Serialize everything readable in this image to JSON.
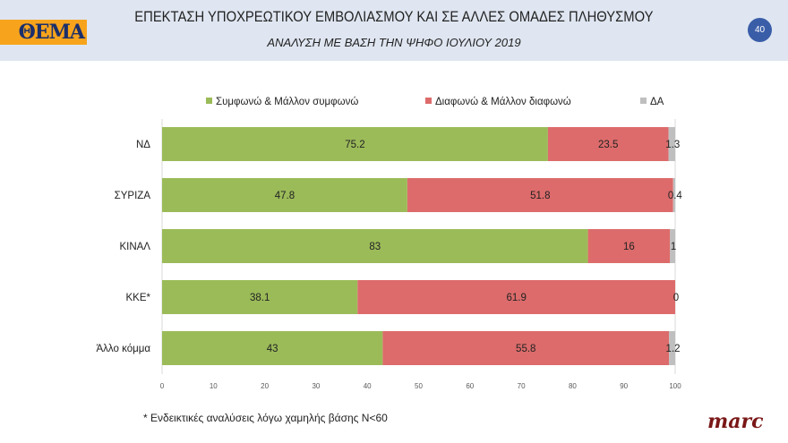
{
  "header": {
    "logo": "ΘΕΜΑ",
    "title": "ΕΠΕΚΤΑΣΗ ΥΠΟΧΡΕΩΤΙΚΟΥ ΕΜΒΟΛΙΑΣΜΟΥ ΚΑΙ ΣΕ ΑΛΛΕΣ ΟΜΑΔΕΣ ΠΛΗΘΥΣΜΟΥ",
    "subtitle": "ΑΝΑΛΥΣΗ ΜΕ ΒΑΣΗ ΤΗΝ ΨΗΦΟ ΙΟΥΛΙΟΥ 2019",
    "page_number": "40"
  },
  "footnote": "* Ενδεικτικές αναλύσεις λόγω χαμηλής βάσης Ν<60",
  "brand": "marc",
  "chart_data": {
    "type": "bar",
    "orientation": "horizontal",
    "stacked": true,
    "categories": [
      "ΝΔ",
      "ΣΥΡΙΖΑ",
      "ΚΙΝΑΛ",
      "ΚΚΕ*",
      "Άλλο κόμμα"
    ],
    "series": [
      {
        "name": "Συμφωνώ & Μάλλον συμφωνώ",
        "color": "#9bbb59",
        "values": [
          75.2,
          47.8,
          83,
          38.1,
          43
        ]
      },
      {
        "name": "Διαφωνώ & Μάλλον διαφωνώ",
        "color": "#dd6b6b",
        "values": [
          23.5,
          51.8,
          16,
          61.9,
          55.8
        ]
      },
      {
        "name": "ΔΑ",
        "color": "#bfbfbf",
        "values": [
          1.3,
          0.4,
          1,
          0,
          1.2
        ]
      }
    ],
    "xlim": [
      0,
      100
    ],
    "xticks": [
      0,
      10,
      20,
      30,
      40,
      50,
      60,
      70,
      80,
      90,
      100
    ],
    "legend": "top",
    "grid": false
  }
}
